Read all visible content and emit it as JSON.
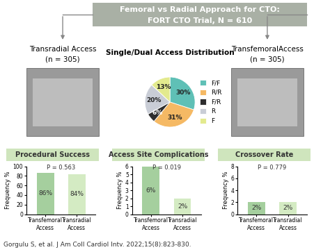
{
  "header": {
    "title": "Femoral vs Radial Approach for CTO:",
    "subtitle": "FORT CTO Trial, N = 610"
  },
  "groups": [
    {
      "label": "Transradial Access",
      "n": "(n = 305)"
    },
    {
      "label": "TransfemoralAccess",
      "n": "(n = 305)"
    }
  ],
  "citation": "Gorgulu S, et al. J Am Coll Cardiol Intv. 2022;15(8):823-830.",
  "chart_data": [
    {
      "type": "pie",
      "title": "Single/Dual Access Distribution",
      "categories": [
        "F/F",
        "R/R",
        "F/R",
        "R",
        "F"
      ],
      "values": [
        30,
        31,
        6,
        20,
        13
      ],
      "value_labels": [
        "30%",
        "31%",
        "6%",
        "20%",
        "13%"
      ],
      "colors": [
        "#5fc0b6",
        "#f5b964",
        "#2e2e2e",
        "#c9cdd6",
        "#e3ea8e"
      ],
      "data_labels": true,
      "legend": "right"
    },
    {
      "type": "bar",
      "title": "Procedural Success",
      "categories": [
        "Transfemoral Access",
        "Transradial Access"
      ],
      "values": [
        86,
        84
      ],
      "value_labels": [
        "86%",
        "84%"
      ],
      "colors": [
        "#a5cf9e",
        "#d4ebc3"
      ],
      "ylabel": "Frequency %",
      "ylim": [
        0,
        100
      ],
      "yticks": [
        0,
        20,
        40,
        60,
        80,
        100
      ],
      "annotations": [
        "P = 0.563"
      ],
      "data_labels": true
    },
    {
      "type": "bar",
      "title": "Access Site Complications",
      "categories": [
        "Transfemoral Access",
        "Transradial Access"
      ],
      "values": [
        6,
        2
      ],
      "value_labels": [
        "6%",
        "2%"
      ],
      "colors": [
        "#a5cf9e",
        "#d4ebc3"
      ],
      "ylabel": "Frequency %",
      "ylim": [
        0,
        6
      ],
      "yticks": [
        0,
        1,
        2,
        3,
        4,
        5,
        6
      ],
      "annotations": [
        "P = 0.019"
      ],
      "data_labels": true
    },
    {
      "type": "bar",
      "title": "Crossover Rate",
      "categories": [
        "Transfemoral Access",
        "Transradial Access"
      ],
      "values": [
        2,
        2
      ],
      "value_labels": [
        "2%",
        "2%"
      ],
      "colors": [
        "#a5cf9e",
        "#d4ebc3"
      ],
      "ylabel": "Frequency %",
      "ylim": [
        0,
        8
      ],
      "yticks": [
        0,
        2,
        4,
        6,
        8
      ],
      "annotations": [
        "P = 0.779"
      ],
      "data_labels": true
    }
  ]
}
